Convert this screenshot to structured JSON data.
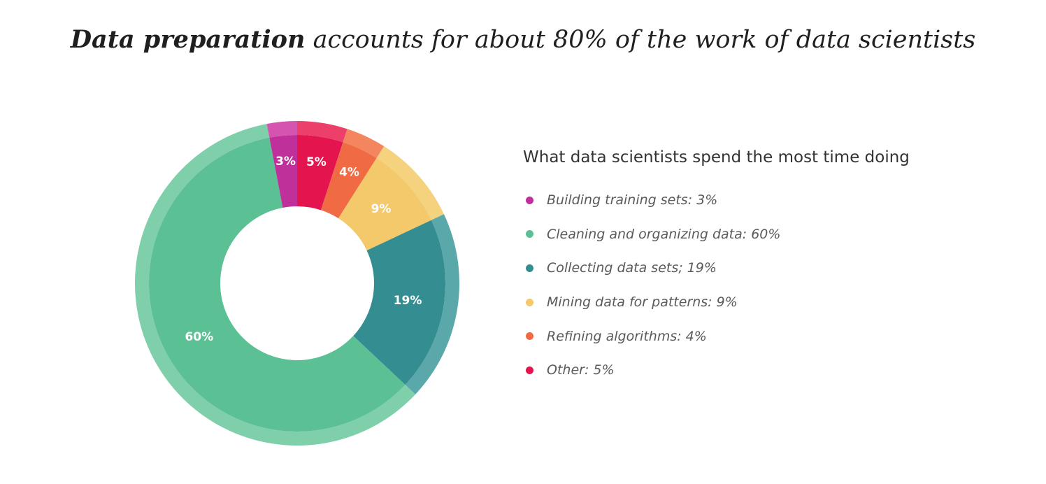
{
  "headline": {
    "bold": "Data preparation",
    "rest": " accounts for about 80% of the work of data scientists"
  },
  "chart_data": {
    "type": "pie",
    "donut": true,
    "title": "What data scientists spend the most time doing",
    "legend_position": "right",
    "categories": [
      "Building training sets",
      "Cleaning and organizing data",
      "Collecting data sets",
      "Mining data for patterns",
      "Refining algorithms",
      "Other"
    ],
    "values": [
      3,
      60,
      19,
      9,
      4,
      5
    ],
    "slice_labels": [
      "3%",
      "60%",
      "19%",
      "9%",
      "4%",
      "5%"
    ],
    "legend_labels": [
      "Building training sets: 3%",
      "Cleaning and organizing data: 60%",
      "Collecting data sets; 19%",
      "Mining data for patterns: 9%",
      "Refining algorithms: 4%",
      "Other: 5%"
    ],
    "colors": [
      "#c0309a",
      "#5bc194",
      "#348e91",
      "#f3c96b",
      "#f06a44",
      "#e3144e"
    ],
    "outer_ring_colors": [
      "#d454b0",
      "#7fcfaa",
      "#5aa8a9",
      "#f5d27e",
      "#f3855f",
      "#ec3f6a"
    ],
    "order_clockwise_from_top": [
      "Other",
      "Refining algorithms",
      "Mining data for patterns",
      "Collecting data sets",
      "Cleaning and organizing data",
      "Building training sets"
    ]
  }
}
